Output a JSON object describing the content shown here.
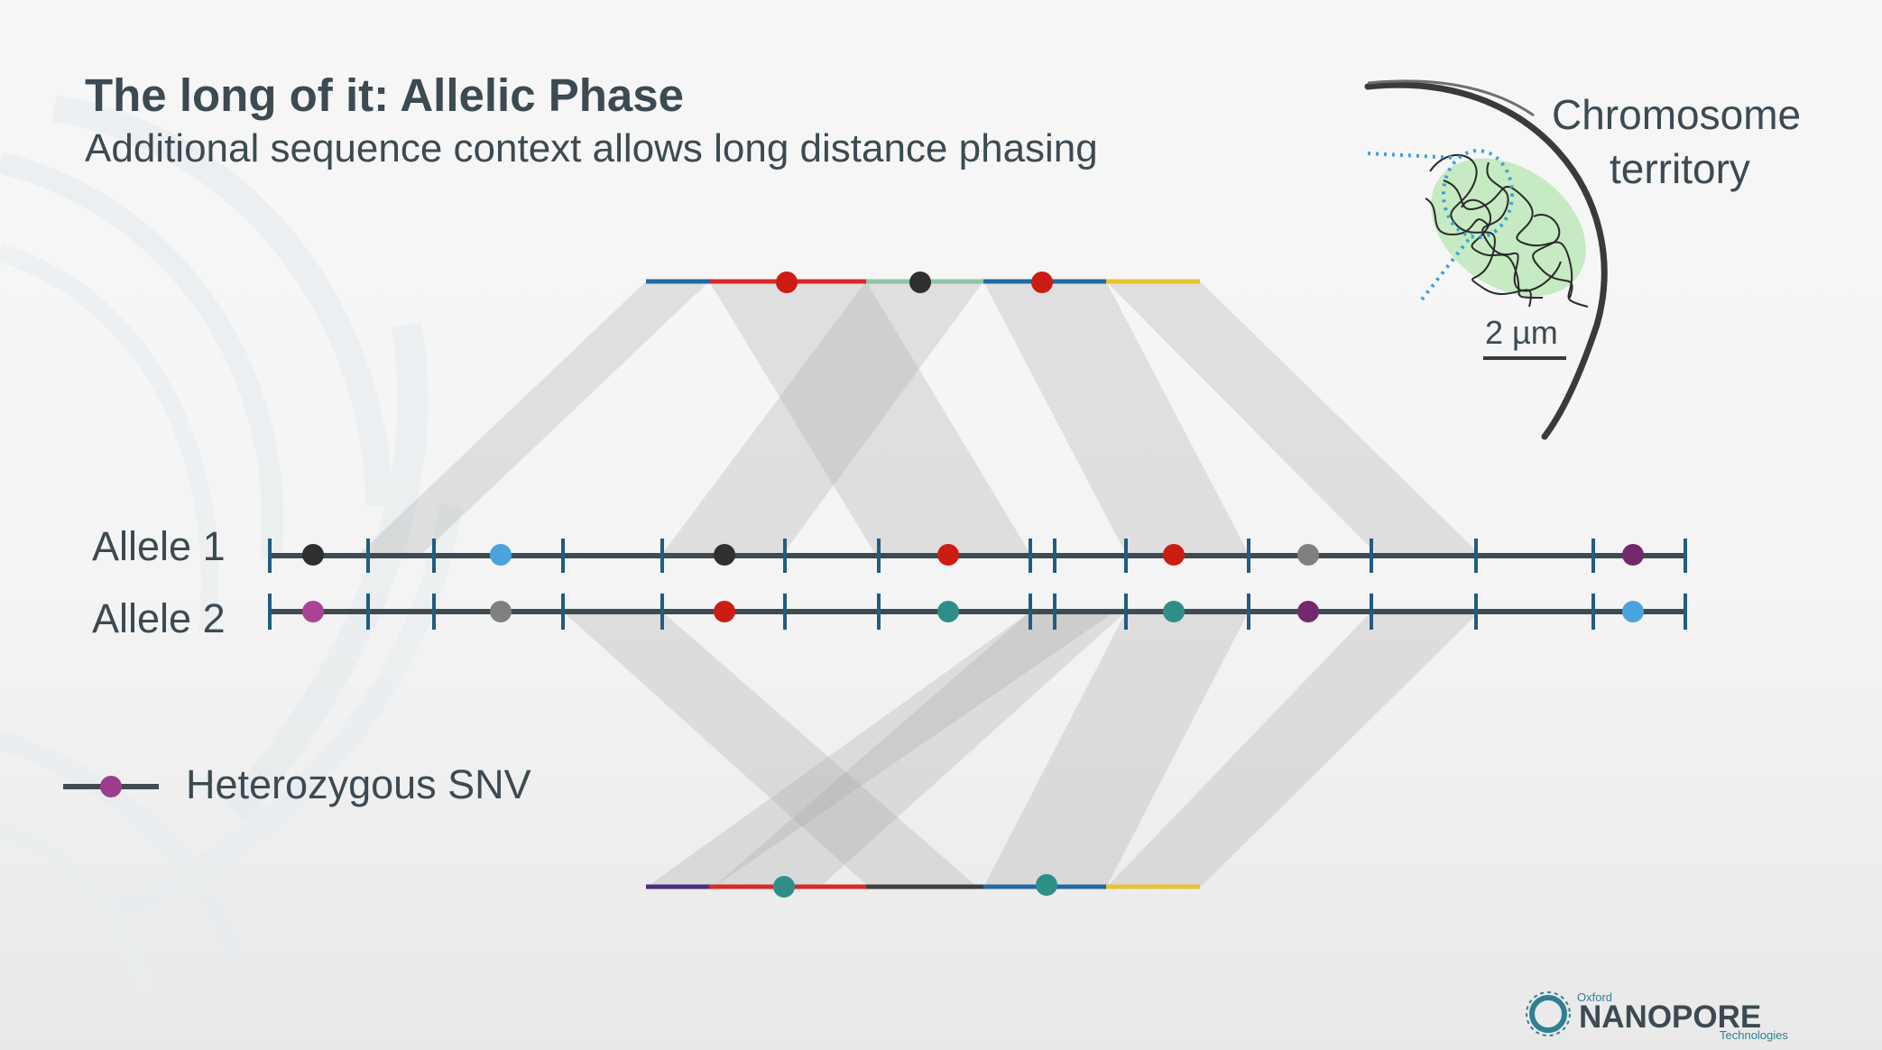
{
  "slide": {
    "title": "The long of it: Allelic Phase",
    "subtitle": "Additional sequence context allows long distance phasing"
  },
  "alleles": {
    "allele1_label": "Allele 1",
    "allele2_label": "Allele 2"
  },
  "legend": {
    "label": "Heterozygous SNV",
    "color": "#9b3d8c"
  },
  "inset": {
    "label_line1": "Chromosome",
    "label_line2": "territory",
    "scale_bar_label": "2 µm"
  },
  "logo": {
    "small_top": "Oxford",
    "main": "NANOPORE",
    "small_bottom": "Technologies"
  },
  "colors": {
    "text": "#3c4a52",
    "band": "#a6a6a6",
    "read_blue": "#1f6aa5",
    "read_red": "#d62a27",
    "read_green": "#8dc6a8",
    "read_yellow": "#e8c22f",
    "read_purple": "#4b2e7e",
    "read_dark": "#3f3f3f",
    "snv_black": "#2f2f2f",
    "snv_red": "#cc1d15",
    "snv_blue": "#4aa3dd",
    "snv_grey": "#808080",
    "snv_magenta": "#a84397",
    "snv_teal": "#2f8f88",
    "snv_purple": "#722a6c",
    "territory": "#bde8b8",
    "dotted": "#3aa2d8",
    "logo_blue": "#2f7f93"
  }
}
